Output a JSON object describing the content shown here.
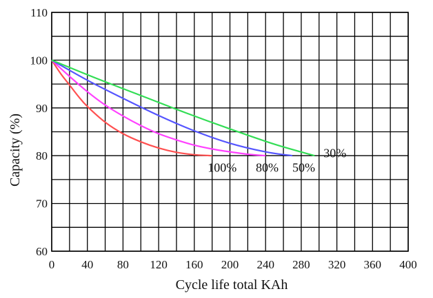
{
  "chart_data": {
    "type": "line",
    "title": "",
    "xlabel": "Cycle life total KAh",
    "ylabel": "Capacity (%)",
    "xlim": [
      0,
      400
    ],
    "ylim": [
      60,
      110
    ],
    "x_ticks": [
      "0",
      "40",
      "80",
      "120",
      "160",
      "200",
      "240",
      "280",
      "320",
      "360",
      "400"
    ],
    "y_ticks": [
      "60",
      "70",
      "80",
      "90",
      "100",
      "110"
    ],
    "grid": true,
    "series": [
      {
        "name": "100%",
        "color": "#ff5050",
        "points": [
          [
            0,
            100
          ],
          [
            10,
            97.2
          ],
          [
            20,
            94.8
          ],
          [
            30,
            92.4
          ],
          [
            40,
            90.3
          ],
          [
            60,
            87.0
          ],
          [
            80,
            84.6
          ],
          [
            100,
            82.9
          ],
          [
            120,
            81.6
          ],
          [
            140,
            80.7
          ],
          [
            160,
            80.2
          ],
          [
            180,
            80.0
          ]
        ]
      },
      {
        "name": "80%",
        "color": "#ff40ff",
        "points": [
          [
            0,
            100
          ],
          [
            20,
            96.6
          ],
          [
            40,
            93.4
          ],
          [
            60,
            90.6
          ],
          [
            80,
            88.3
          ],
          [
            100,
            86.3
          ],
          [
            120,
            84.6
          ],
          [
            140,
            83.3
          ],
          [
            160,
            82.2
          ],
          [
            180,
            81.4
          ],
          [
            200,
            80.8
          ],
          [
            220,
            80.3
          ],
          [
            240,
            80.0
          ]
        ]
      },
      {
        "name": "50%",
        "color": "#5555ff",
        "points": [
          [
            0,
            100
          ],
          [
            40,
            95.8
          ],
          [
            80,
            92.0
          ],
          [
            120,
            88.4
          ],
          [
            160,
            85.2
          ],
          [
            200,
            82.6
          ],
          [
            240,
            80.8
          ],
          [
            270,
            80.0
          ]
        ]
      },
      {
        "name": "30%",
        "color": "#33dd55",
        "points": [
          [
            0,
            100
          ],
          [
            50,
            96.2
          ],
          [
            100,
            92.6
          ],
          [
            150,
            89.0
          ],
          [
            200,
            85.6
          ],
          [
            250,
            82.4
          ],
          [
            295,
            80.0
          ]
        ]
      }
    ],
    "annotations": [
      {
        "text": "100%",
        "x": 175,
        "y": 77.5
      },
      {
        "text": "80%",
        "x": 229,
        "y": 77.5
      },
      {
        "text": "50%",
        "x": 270,
        "y": 77.5
      },
      {
        "text": "30%",
        "x": 305,
        "y": 80.5
      }
    ]
  }
}
